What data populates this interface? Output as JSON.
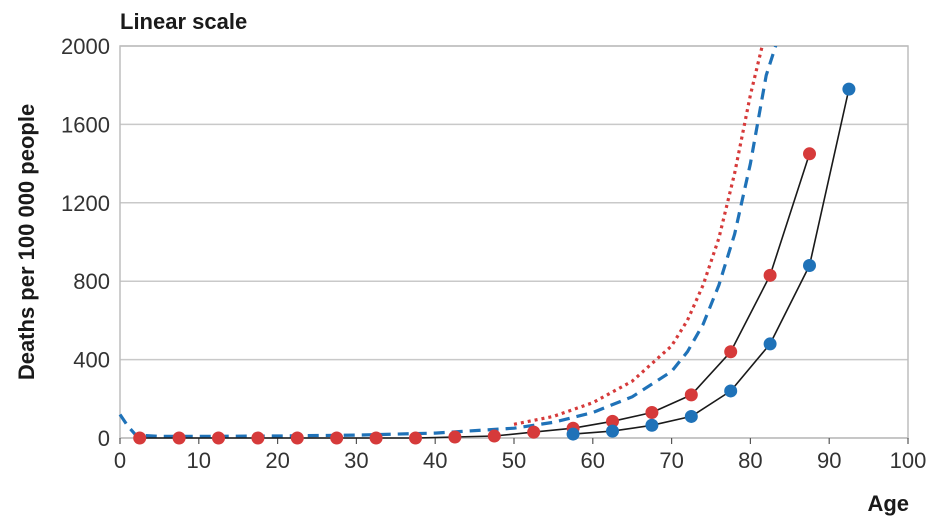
{
  "chart_data": {
    "type": "line",
    "title": "Linear scale",
    "xlabel": "Age",
    "ylabel": "Deaths per 100 000 people",
    "xlim": [
      0,
      100
    ],
    "ylim": [
      0,
      2000
    ],
    "xticks": [
      0,
      10,
      20,
      30,
      40,
      50,
      60,
      70,
      80,
      90,
      100
    ],
    "yticks": [
      0,
      400,
      800,
      1200,
      1600,
      2000
    ],
    "grid": true,
    "colors": {
      "red": "#d63a3a",
      "blue": "#1f72b8",
      "black": "#1a1a1a",
      "grid": "#c9c9c9"
    },
    "series": [
      {
        "style": "dotted",
        "color": "#d63a3a",
        "x": [
          50,
          55,
          60,
          65,
          70,
          72,
          74,
          76,
          78,
          80,
          81.5
        ],
        "y": [
          70,
          110,
          180,
          290,
          470,
          600,
          780,
          1020,
          1350,
          1750,
          2000
        ]
      },
      {
        "style": "dashed",
        "color": "#1f72b8",
        "x": [
          0,
          1,
          2,
          5,
          10,
          20,
          30,
          40,
          50,
          55,
          60,
          65,
          70,
          72,
          74,
          76,
          78,
          80,
          82,
          84
        ],
        "y": [
          120,
          60,
          15,
          8,
          8,
          10,
          15,
          25,
          50,
          80,
          130,
          210,
          340,
          440,
          580,
          780,
          1040,
          1400,
          1850,
          2100
        ]
      },
      {
        "style": "markers-line",
        "color": "#d63a3a",
        "x": [
          2.5,
          7.5,
          12.5,
          17.5,
          22.5,
          27.5,
          32.5,
          37.5,
          42.5,
          47.5,
          52.5,
          57.5,
          62.5,
          67.5,
          72.5,
          77.5,
          82.5,
          87.5
        ],
        "y": [
          0,
          0,
          0,
          0,
          0,
          0,
          0,
          0,
          5,
          10,
          30,
          50,
          85,
          130,
          220,
          440,
          830,
          1450
        ]
      },
      {
        "style": "markers-line",
        "color": "#1f72b8",
        "x": [
          57.5,
          62.5,
          67.5,
          72.5,
          77.5,
          82.5,
          87.5,
          92.5
        ],
        "y": [
          20,
          35,
          65,
          110,
          240,
          480,
          880,
          1780
        ]
      }
    ]
  }
}
